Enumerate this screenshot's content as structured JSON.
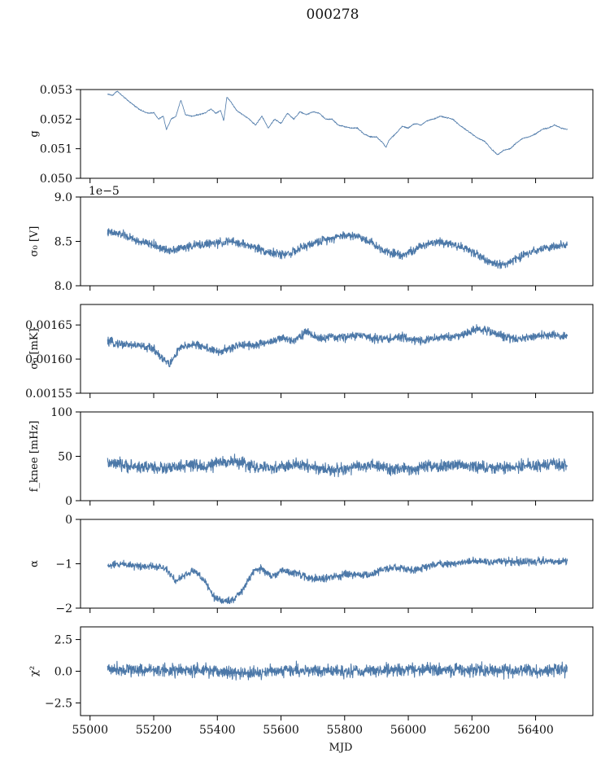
{
  "figure": {
    "title": "000278",
    "x_axis_label": "MJD"
  },
  "chart_data": [
    {
      "type": "line",
      "ylabel": "g",
      "xlim": [
        54970,
        56580
      ],
      "ylim": [
        0.05,
        0.053
      ],
      "yticks": [
        0.05,
        0.051,
        0.052,
        0.053
      ],
      "ytick_labels": [
        "0.050",
        "0.051",
        "0.052",
        "0.053"
      ],
      "xticks": [
        55000,
        55200,
        55400,
        55600,
        55800,
        56000,
        56200,
        56400
      ],
      "xtick_labels_shown": false,
      "noise": 3e-05,
      "series": [
        {
          "color": "#4C78A8",
          "x": [
            55055,
            55070,
            55085,
            55100,
            55120,
            55140,
            55160,
            55180,
            55200,
            55215,
            55230,
            55240,
            55255,
            55270,
            55285,
            55300,
            55320,
            55340,
            55360,
            55380,
            55395,
            55410,
            55420,
            55430,
            55445,
            55460,
            55480,
            55500,
            55520,
            55540,
            55560,
            55580,
            55600,
            55620,
            55640,
            55660,
            55680,
            55700,
            55720,
            55740,
            55760,
            55780,
            55800,
            55820,
            55840,
            55860,
            55880,
            55900,
            55920,
            55930,
            55940,
            55960,
            55980,
            56000,
            56020,
            56040,
            56060,
            56080,
            56100,
            56120,
            56140,
            56160,
            56180,
            56200,
            56220,
            56240,
            56260,
            56280,
            56300,
            56320,
            56340,
            56360,
            56380,
            56400,
            56420,
            56440,
            56460,
            56480,
            56500
          ],
          "values": [
            0.05285,
            0.0528,
            0.05295,
            0.0528,
            0.05262,
            0.05245,
            0.0523,
            0.0522,
            0.05222,
            0.052,
            0.0521,
            0.05165,
            0.052,
            0.0521,
            0.05265,
            0.05215,
            0.0521,
            0.05215,
            0.0522,
            0.05235,
            0.0522,
            0.0523,
            0.05195,
            0.05275,
            0.05255,
            0.0523,
            0.05215,
            0.052,
            0.0518,
            0.0521,
            0.0517,
            0.052,
            0.05185,
            0.0522,
            0.052,
            0.05225,
            0.05215,
            0.05225,
            0.0522,
            0.052,
            0.052,
            0.0518,
            0.05175,
            0.0517,
            0.0517,
            0.0515,
            0.0514,
            0.0514,
            0.0512,
            0.05105,
            0.0513,
            0.0515,
            0.05175,
            0.0517,
            0.05185,
            0.0518,
            0.05195,
            0.052,
            0.0521,
            0.05205,
            0.052,
            0.0518,
            0.05165,
            0.0515,
            0.05135,
            0.05125,
            0.051,
            0.0508,
            0.05095,
            0.051,
            0.0512,
            0.05135,
            0.0514,
            0.0515,
            0.05165,
            0.0517,
            0.0518,
            0.0517,
            0.05165
          ]
        }
      ]
    },
    {
      "type": "line",
      "ylabel": "σ₀ [V]",
      "offset_text": "1e−5",
      "xlim": [
        54970,
        56580
      ],
      "ylim": [
        8.0,
        9.0
      ],
      "yticks": [
        8.0,
        8.5,
        9.0
      ],
      "ytick_labels": [
        "8.0",
        "8.5",
        "9.0"
      ],
      "xticks": [
        55000,
        55200,
        55400,
        55600,
        55800,
        56000,
        56200,
        56400
      ],
      "xtick_labels_shown": false,
      "noise": 0.07,
      "series": [
        {
          "color": "#4C78A8",
          "x": [
            55055,
            55100,
            55150,
            55200,
            55240,
            55280,
            55320,
            55360,
            55400,
            55440,
            55480,
            55520,
            55560,
            55600,
            55640,
            55680,
            55720,
            55760,
            55800,
            55840,
            55880,
            55910,
            55940,
            55980,
            56020,
            56060,
            56100,
            56140,
            56180,
            56220,
            56260,
            56300,
            56340,
            56380,
            56420,
            56460,
            56500
          ],
          "values": [
            8.6,
            8.58,
            8.5,
            8.46,
            8.4,
            8.42,
            8.45,
            8.47,
            8.48,
            8.5,
            8.47,
            8.43,
            8.38,
            8.35,
            8.38,
            8.45,
            8.5,
            8.54,
            8.57,
            8.56,
            8.5,
            8.42,
            8.38,
            8.35,
            8.4,
            8.48,
            8.5,
            8.47,
            8.42,
            8.35,
            8.25,
            8.24,
            8.3,
            8.38,
            8.42,
            8.44,
            8.45
          ]
        }
      ]
    },
    {
      "type": "line",
      "ylabel": "σ₀ [mK]",
      "xlim": [
        54970,
        56580
      ],
      "ylim": [
        0.00155,
        0.00168
      ],
      "yticks": [
        0.00155,
        0.0016,
        0.00165
      ],
      "ytick_labels": [
        "0.00155",
        "0.00160",
        "0.00165"
      ],
      "xticks": [
        55000,
        55200,
        55400,
        55600,
        55800,
        56000,
        56200,
        56400
      ],
      "xtick_labels_shown": false,
      "noise": 9e-06,
      "series": [
        {
          "color": "#4C78A8",
          "x": [
            55055,
            55100,
            55150,
            55200,
            55230,
            55250,
            55280,
            55320,
            55360,
            55400,
            55440,
            55480,
            55520,
            55560,
            55600,
            55640,
            55680,
            55720,
            55760,
            55800,
            55840,
            55880,
            55910,
            55940,
            55980,
            56020,
            56060,
            56100,
            56140,
            56180,
            56220,
            56260,
            56300,
            56340,
            56380,
            56420,
            56460,
            56500
          ],
          "values": [
            0.001625,
            0.001622,
            0.00162,
            0.001615,
            0.0016,
            0.001592,
            0.001615,
            0.001622,
            0.001618,
            0.00161,
            0.001615,
            0.001622,
            0.00162,
            0.001625,
            0.00163,
            0.001628,
            0.00164,
            0.00163,
            0.001632,
            0.001632,
            0.001635,
            0.001632,
            0.00163,
            0.00163,
            0.001632,
            0.001628,
            0.001628,
            0.001632,
            0.001633,
            0.001637,
            0.001645,
            0.00164,
            0.001633,
            0.00163,
            0.001632,
            0.001635,
            0.001635,
            0.001633
          ]
        }
      ]
    },
    {
      "type": "line",
      "ylabel": "f_knee [mHz]",
      "xlim": [
        54970,
        56580
      ],
      "ylim": [
        0,
        100
      ],
      "yticks": [
        0,
        50,
        100
      ],
      "ytick_labels": [
        "0",
        "50",
        "100"
      ],
      "xticks": [
        55000,
        55200,
        55400,
        55600,
        55800,
        56000,
        56200,
        56400
      ],
      "xtick_labels_shown": false,
      "noise": 10,
      "series": [
        {
          "color": "#4C78A8",
          "x": [
            55055,
            55100,
            55150,
            55200,
            55240,
            55280,
            55320,
            55360,
            55400,
            55440,
            55480,
            55520,
            55560,
            55600,
            55640,
            55680,
            55720,
            55760,
            55800,
            55840,
            55880,
            55910,
            55940,
            55980,
            56020,
            56060,
            56100,
            56140,
            56180,
            56220,
            56260,
            56300,
            56340,
            56380,
            56420,
            56460,
            56500
          ],
          "values": [
            42,
            40,
            38,
            38,
            36,
            38,
            40,
            38,
            42,
            45,
            42,
            38,
            36,
            38,
            40,
            40,
            36,
            35,
            35,
            38,
            40,
            38,
            36,
            35,
            36,
            38,
            38,
            40,
            40,
            38,
            37,
            37,
            38,
            40,
            40,
            40,
            40
          ]
        }
      ]
    },
    {
      "type": "line",
      "ylabel": "α",
      "xlim": [
        54970,
        56580
      ],
      "ylim": [
        -2,
        0
      ],
      "yticks": [
        -2,
        -1,
        0
      ],
      "ytick_labels": [
        "−2",
        "−1",
        "0"
      ],
      "xticks": [
        55000,
        55200,
        55400,
        55600,
        55800,
        56000,
        56200,
        56400
      ],
      "xtick_labels_shown": false,
      "noise": 0.12,
      "series": [
        {
          "color": "#4C78A8",
          "x": [
            55055,
            55100,
            55150,
            55200,
            55240,
            55270,
            55300,
            55330,
            55360,
            55390,
            55420,
            55450,
            55480,
            55510,
            55540,
            55570,
            55600,
            55640,
            55680,
            55720,
            55760,
            55800,
            55840,
            55880,
            55910,
            55940,
            55980,
            56020,
            56060,
            56100,
            56140,
            56180,
            56220,
            56260,
            56300,
            56340,
            56380,
            56420,
            56460,
            56500
          ],
          "values": [
            -1.05,
            -1.0,
            -1.05,
            -1.05,
            -1.1,
            -1.4,
            -1.25,
            -1.15,
            -1.4,
            -1.75,
            -1.85,
            -1.8,
            -1.6,
            -1.2,
            -1.1,
            -1.3,
            -1.15,
            -1.2,
            -1.3,
            -1.35,
            -1.3,
            -1.25,
            -1.25,
            -1.25,
            -1.15,
            -1.1,
            -1.1,
            -1.15,
            -1.05,
            -1.0,
            -1.0,
            -0.95,
            -0.95,
            -0.95,
            -0.95,
            -0.95,
            -0.95,
            -0.95,
            -0.95,
            -0.95
          ]
        }
      ]
    },
    {
      "type": "line",
      "ylabel": "χ²",
      "xlim": [
        54970,
        56580
      ],
      "ylim": [
        -3.5,
        3.5
      ],
      "yticks": [
        -2.5,
        0.0,
        2.5
      ],
      "ytick_labels": [
        "−2.5",
        "0.0",
        "2.5"
      ],
      "xticks": [
        55000,
        55200,
        55400,
        55600,
        55800,
        56000,
        56200,
        56400
      ],
      "xtick_labels": [
        "55000",
        "55200",
        "55400",
        "55600",
        "55800",
        "56000",
        "56200",
        "56400"
      ],
      "xtick_labels_shown": true,
      "xlabel": "MJD",
      "noise": 0.75,
      "series": [
        {
          "color": "#4C78A8",
          "x": [
            55055,
            55200,
            55400,
            55500,
            55600,
            55800,
            56000,
            56200,
            56400,
            56500
          ],
          "values": [
            0.2,
            0.1,
            0.0,
            -0.2,
            0.1,
            0.0,
            0.1,
            0.1,
            0.0,
            0.1
          ]
        }
      ]
    }
  ]
}
